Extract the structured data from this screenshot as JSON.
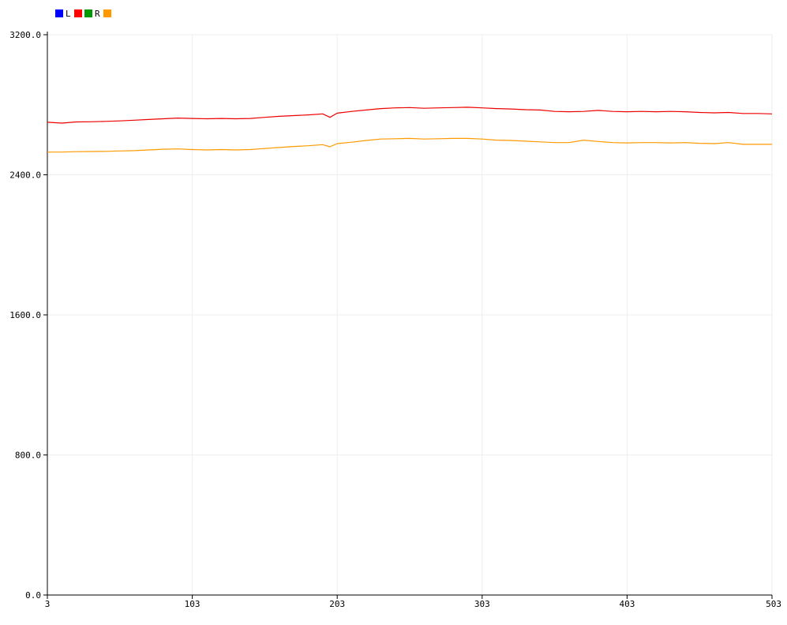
{
  "chart_data": {
    "type": "line",
    "legend": [
      {
        "label": "L",
        "color": "#0000ff",
        "swatch_after": "#ff0000"
      },
      {
        "label": "R",
        "color": "#009900",
        "swatch_after": "#ff9900"
      }
    ],
    "legend_placement": "top-left",
    "grid": true,
    "xlim": [
      3,
      503
    ],
    "ylim": [
      0,
      3200
    ],
    "x_ticks": [
      "3",
      "103",
      "203",
      "303",
      "403",
      "503"
    ],
    "y_ticks": [
      "0.0",
      "800.0",
      "1600.0",
      "2400.0",
      "3200.0"
    ],
    "series": [
      {
        "color": "#ee0000",
        "x": [
          3,
          13,
          23,
          33,
          43,
          53,
          63,
          73,
          83,
          93,
          103,
          113,
          123,
          133,
          143,
          153,
          163,
          173,
          183,
          193,
          198,
          203,
          213,
          223,
          233,
          243,
          253,
          263,
          273,
          283,
          293,
          303,
          313,
          323,
          333,
          343,
          353,
          363,
          373,
          383,
          393,
          403,
          413,
          423,
          433,
          443,
          453,
          463,
          473,
          483,
          493,
          503
        ],
        "values": [
          2700,
          2695,
          2702,
          2703,
          2705,
          2708,
          2712,
          2716,
          2720,
          2724,
          2722,
          2720,
          2722,
          2720,
          2722,
          2728,
          2734,
          2738,
          2742,
          2748,
          2728,
          2752,
          2762,
          2770,
          2778,
          2782,
          2784,
          2780,
          2782,
          2784,
          2786,
          2782,
          2778,
          2776,
          2772,
          2770,
          2762,
          2760,
          2762,
          2768,
          2762,
          2760,
          2762,
          2760,
          2762,
          2760,
          2756,
          2754,
          2756,
          2750,
          2750,
          2748
        ]
      },
      {
        "color": "#ff9900",
        "x": [
          3,
          13,
          23,
          33,
          43,
          53,
          63,
          73,
          83,
          93,
          103,
          113,
          123,
          133,
          143,
          153,
          163,
          173,
          183,
          193,
          198,
          203,
          213,
          223,
          233,
          243,
          253,
          263,
          273,
          283,
          293,
          303,
          313,
          323,
          333,
          343,
          353,
          363,
          373,
          383,
          393,
          403,
          413,
          423,
          433,
          443,
          453,
          463,
          473,
          483,
          493,
          503
        ],
        "values": [
          2530,
          2530,
          2532,
          2533,
          2534,
          2536,
          2538,
          2542,
          2546,
          2548,
          2544,
          2542,
          2544,
          2542,
          2544,
          2550,
          2556,
          2562,
          2566,
          2572,
          2560,
          2578,
          2586,
          2596,
          2604,
          2606,
          2608,
          2604,
          2606,
          2608,
          2608,
          2604,
          2598,
          2596,
          2592,
          2588,
          2584,
          2584,
          2598,
          2590,
          2584,
          2582,
          2584,
          2584,
          2582,
          2584,
          2580,
          2578,
          2584,
          2574,
          2574,
          2574
        ]
      }
    ]
  }
}
